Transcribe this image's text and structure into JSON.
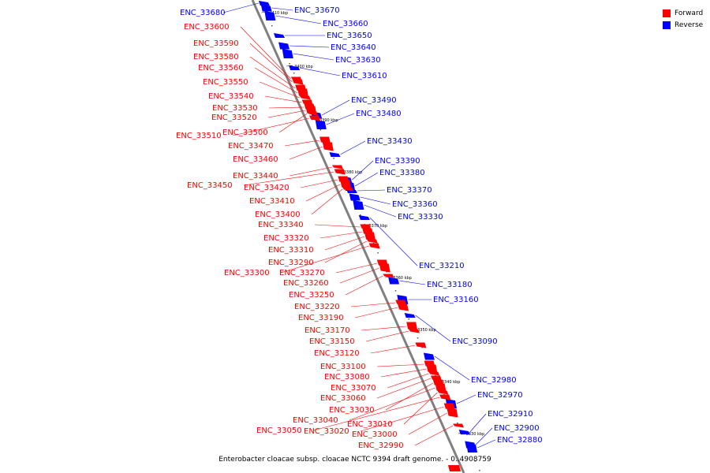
{
  "legend": {
    "forward_label": "Forward",
    "reverse_label": "Reverse",
    "forward_color": "#ff0000",
    "reverse_color": "#0000ff"
  },
  "caption": "Enterobacter cloacae subsp. cloacae NCTC 9394 draft genome. - 0..4908759",
  "axis": {
    "ticks": [
      "3410 kbp",
      "3400 kbp",
      "3390 kbp",
      "3380 kbp",
      "3370 kbp",
      "3360 kbp",
      "3350 kbp",
      "3340 kbp",
      "3330 kbp"
    ]
  },
  "reverse_genes": [
    "ENC_33680",
    "ENC_33670",
    "ENC_33660",
    "ENC_33650",
    "ENC_33640",
    "ENC_33630",
    "ENC_33610",
    "ENC_33490",
    "ENC_33480",
    "ENC_33430",
    "ENC_33390",
    "ENC_33380",
    "ENC_33370",
    "ENC_33360",
    "ENC_33330",
    "ENC_33210",
    "ENC_33180",
    "ENC_33160",
    "ENC_33090",
    "ENC_32980",
    "ENC_32970",
    "ENC_32910",
    "ENC_32900",
    "ENC_32880"
  ],
  "forward_genes": [
    "ENC_33600",
    "ENC_33590",
    "ENC_33580",
    "ENC_33560",
    "ENC_33550",
    "ENC_33540",
    "ENC_33530",
    "ENC_33520",
    "ENC_33500",
    "ENC_33510",
    "ENC_33470",
    "ENC_33460",
    "ENC_33440",
    "ENC_33450",
    "ENC_33420",
    "ENC_33410",
    "ENC_33400",
    "ENC_33340",
    "ENC_33320",
    "ENC_33310",
    "ENC_33290",
    "ENC_33300",
    "ENC_33270",
    "ENC_33260",
    "ENC_33250",
    "ENC_33220",
    "ENC_33190",
    "ENC_33170",
    "ENC_33150",
    "ENC_33120",
    "ENC_33100",
    "ENC_33080",
    "ENC_33070",
    "ENC_33060",
    "ENC_33030",
    "ENC_33040",
    "ENC_33010",
    "ENC_33050",
    "ENC_33020",
    "ENC_33000",
    "ENC_32990"
  ]
}
